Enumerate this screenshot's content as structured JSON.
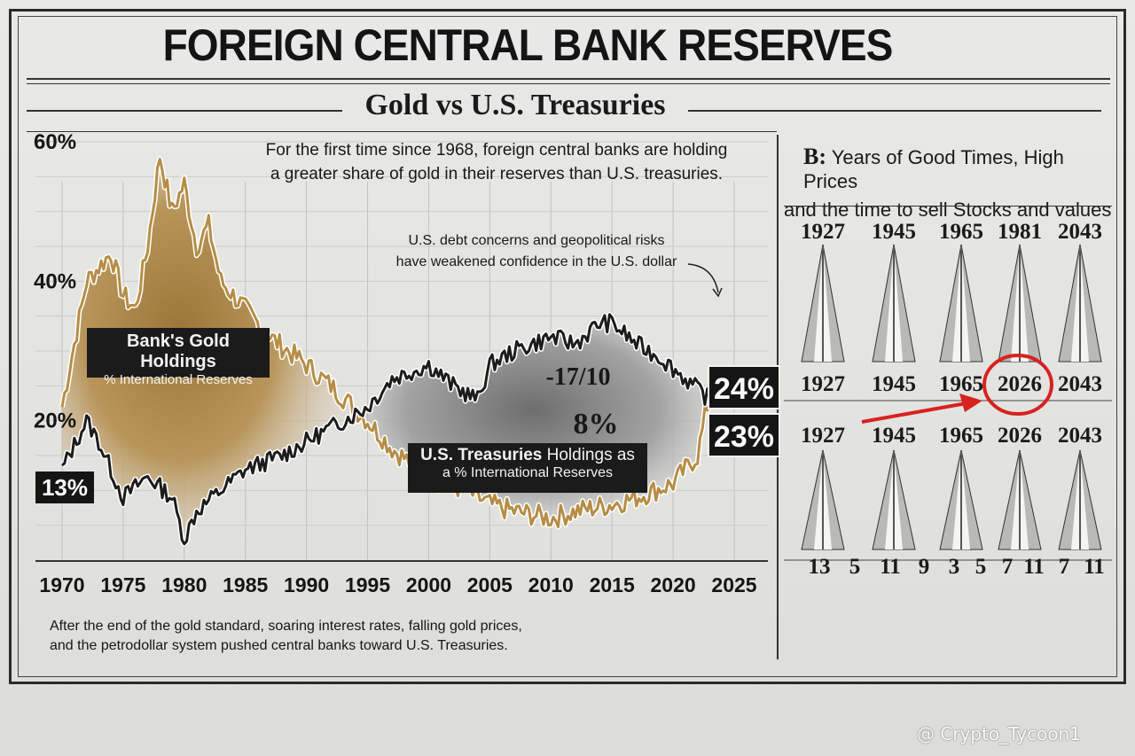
{
  "header": {
    "title": "FOREIGN CENTRAL BANK RESERVES",
    "subtitle": "Gold vs U.S. Treasuries"
  },
  "annotations": {
    "top_note_line1": "For the first time since 1968, foreign central banks are holding",
    "top_note_line2": "a greater share of gold in their reserves than U.S. treasuries.",
    "debt_note_line1": "U.S. debt concerns and geopolitical risks",
    "debt_note_line2": "have weakened confidence in the U.S. dollar",
    "gold_label_title": "Bank's Gold Holdings",
    "gold_label_sub": "% International Reserves",
    "treasury_label_title": "U.S. Treasuries",
    "treasury_label_title_rest": " Holdings as",
    "treasury_label_sub": "a % International Reserves",
    "mid_value_1": "-17/10",
    "mid_value_2": "8%",
    "badge_13": "13%",
    "badge_24": "24%",
    "badge_23": "23%",
    "bottom_line1": "After the end of the gold standard, soaring interest rates, falling gold prices,",
    "bottom_line2": "and the petrodollar system pushed central banks toward U.S. Treasuries."
  },
  "chart_data": {
    "type": "line",
    "title": "Gold vs U.S. Treasuries",
    "xlabel": "",
    "ylabel": "",
    "xlim": [
      1970,
      2025
    ],
    "ylim": [
      0,
      60
    ],
    "y_ticks": [
      "60%",
      "40%",
      "20%"
    ],
    "x_ticks": [
      "1970",
      "1975",
      "1980",
      "1985",
      "1990",
      "1995",
      "2000",
      "2005",
      "2010",
      "2015",
      "2020",
      "2025"
    ],
    "series": [
      {
        "name": "Bank's Gold Holdings % International Reserves",
        "color": "#b58d45",
        "x": [
          1970,
          1972,
          1974,
          1975,
          1976,
          1977,
          1978,
          1979,
          1980,
          1981,
          1982,
          1983,
          1985,
          1987,
          1990,
          1992,
          1995,
          1997,
          2000,
          2003,
          2005,
          2007,
          2010,
          2012,
          2015,
          2017,
          2020,
          2022,
          2023
        ],
        "y": [
          22,
          40,
          44,
          38,
          36,
          45,
          58,
          50,
          54,
          45,
          48,
          40,
          36,
          32,
          28,
          25,
          20,
          16,
          12,
          10,
          8,
          7,
          6,
          7,
          8,
          9,
          11,
          15,
          24
        ]
      },
      {
        "name": "U.S. Treasuries Holdings as a % International Reserves",
        "color": "#1c1c1c",
        "x": [
          1970,
          1972,
          1973,
          1975,
          1977,
          1979,
          1980,
          1981,
          1983,
          1985,
          1988,
          1990,
          1993,
          1995,
          1997,
          2000,
          2002,
          2004,
          2005,
          2007,
          2010,
          2012,
          2014,
          2015,
          2017,
          2019,
          2021,
          2023
        ],
        "y": [
          13,
          20,
          17,
          9,
          12,
          9,
          3,
          7,
          10,
          13,
          15,
          17,
          20,
          22,
          26,
          28,
          25,
          23,
          28,
          30,
          32,
          31,
          34,
          34,
          31,
          29,
          26,
          23
        ]
      }
    ],
    "panel_b": {
      "title_bold": "B:",
      "title_line1": "Years of Good Times, High Prices",
      "title_line2": "and the time to sell Stocks and values",
      "row1_years": [
        "1927",
        "1945",
        "1965",
        "1981",
        "2043"
      ],
      "row2_years": [
        "1927",
        "1945",
        "1965",
        "2026",
        "2043"
      ],
      "row3_years": [
        "1927",
        "1945",
        "1965",
        "2026",
        "2043"
      ],
      "highlighted_year": "2026",
      "interval_numbers": [
        "13",
        "5",
        "11",
        "9",
        "3",
        "5",
        "7",
        "11",
        "7",
        "11"
      ]
    }
  },
  "watermark": "@ Crypto_Tycoon1"
}
